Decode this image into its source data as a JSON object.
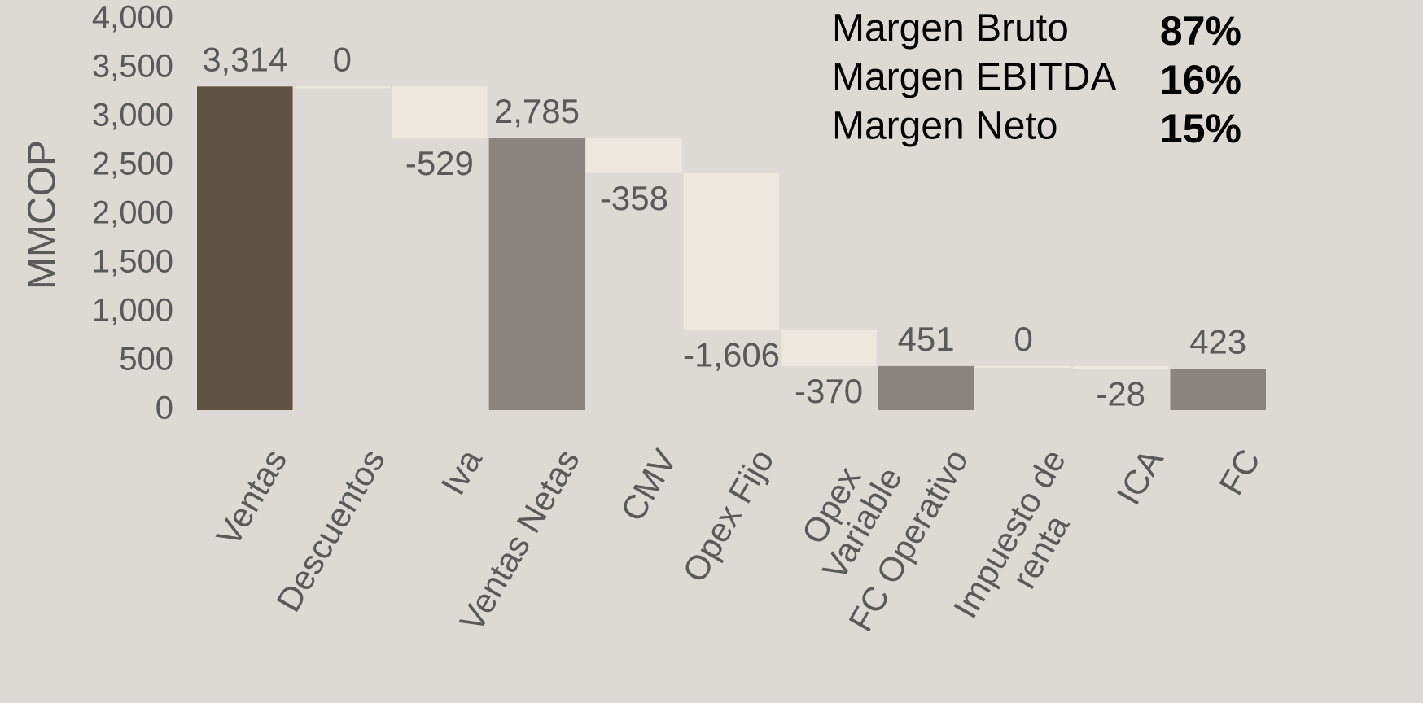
{
  "chart_data": {
    "type": "waterfall",
    "y_label": "MMCOP",
    "categories": [
      "Ventas",
      "Descuentos",
      "Iva",
      "Ventas Netas",
      "CMV",
      "Opex Fijo",
      "Opex\nVariable",
      "FC Operativo",
      "Impuesto de\nrenta",
      "ICA",
      "FC"
    ],
    "values": [
      3314,
      0,
      -529,
      2785,
      -358,
      -1606,
      -370,
      451,
      0,
      -28,
      423
    ],
    "value_labels": [
      "3,314",
      "0",
      "-529",
      "2,785",
      "-358",
      "-1,606",
      "-370",
      "451",
      "0",
      "-28",
      "423"
    ],
    "measure": [
      "total",
      "relative",
      "relative",
      "total",
      "relative",
      "relative",
      "relative",
      "total",
      "relative",
      "relative",
      "total"
    ],
    "colors": [
      "#5f5443",
      "#ece8de",
      "#ece8de",
      "#8a857f",
      "#ece8de",
      "#ece8de",
      "#ece8de",
      "#8a857f",
      "#ece8de",
      "#ece8de",
      "#8a857f"
    ],
    "ylim": [
      0,
      4000
    ],
    "yticks": [
      0,
      {
        "value": 500,
        "label": "500"
      },
      {
        "value": 1000,
        "label": "1,000"
      },
      {
        "value": 1500,
        "label": "1,500"
      },
      {
        "value": 2000,
        "label": "2,000"
      },
      {
        "value": 2500,
        "label": "2,500"
      },
      {
        "value": 3000,
        "label": "3,000"
      },
      {
        "value": 3500,
        "label": "3,500"
      },
      {
        "value": 4000,
        "label": "4,000"
      }
    ],
    "grid": false,
    "annotations": [
      {
        "label": "Margen Bruto",
        "text": "87%"
      },
      {
        "label": "Margen EBITDA",
        "text": "16%"
      },
      {
        "label": "Margen Neto",
        "text": "15%"
      }
    ]
  }
}
